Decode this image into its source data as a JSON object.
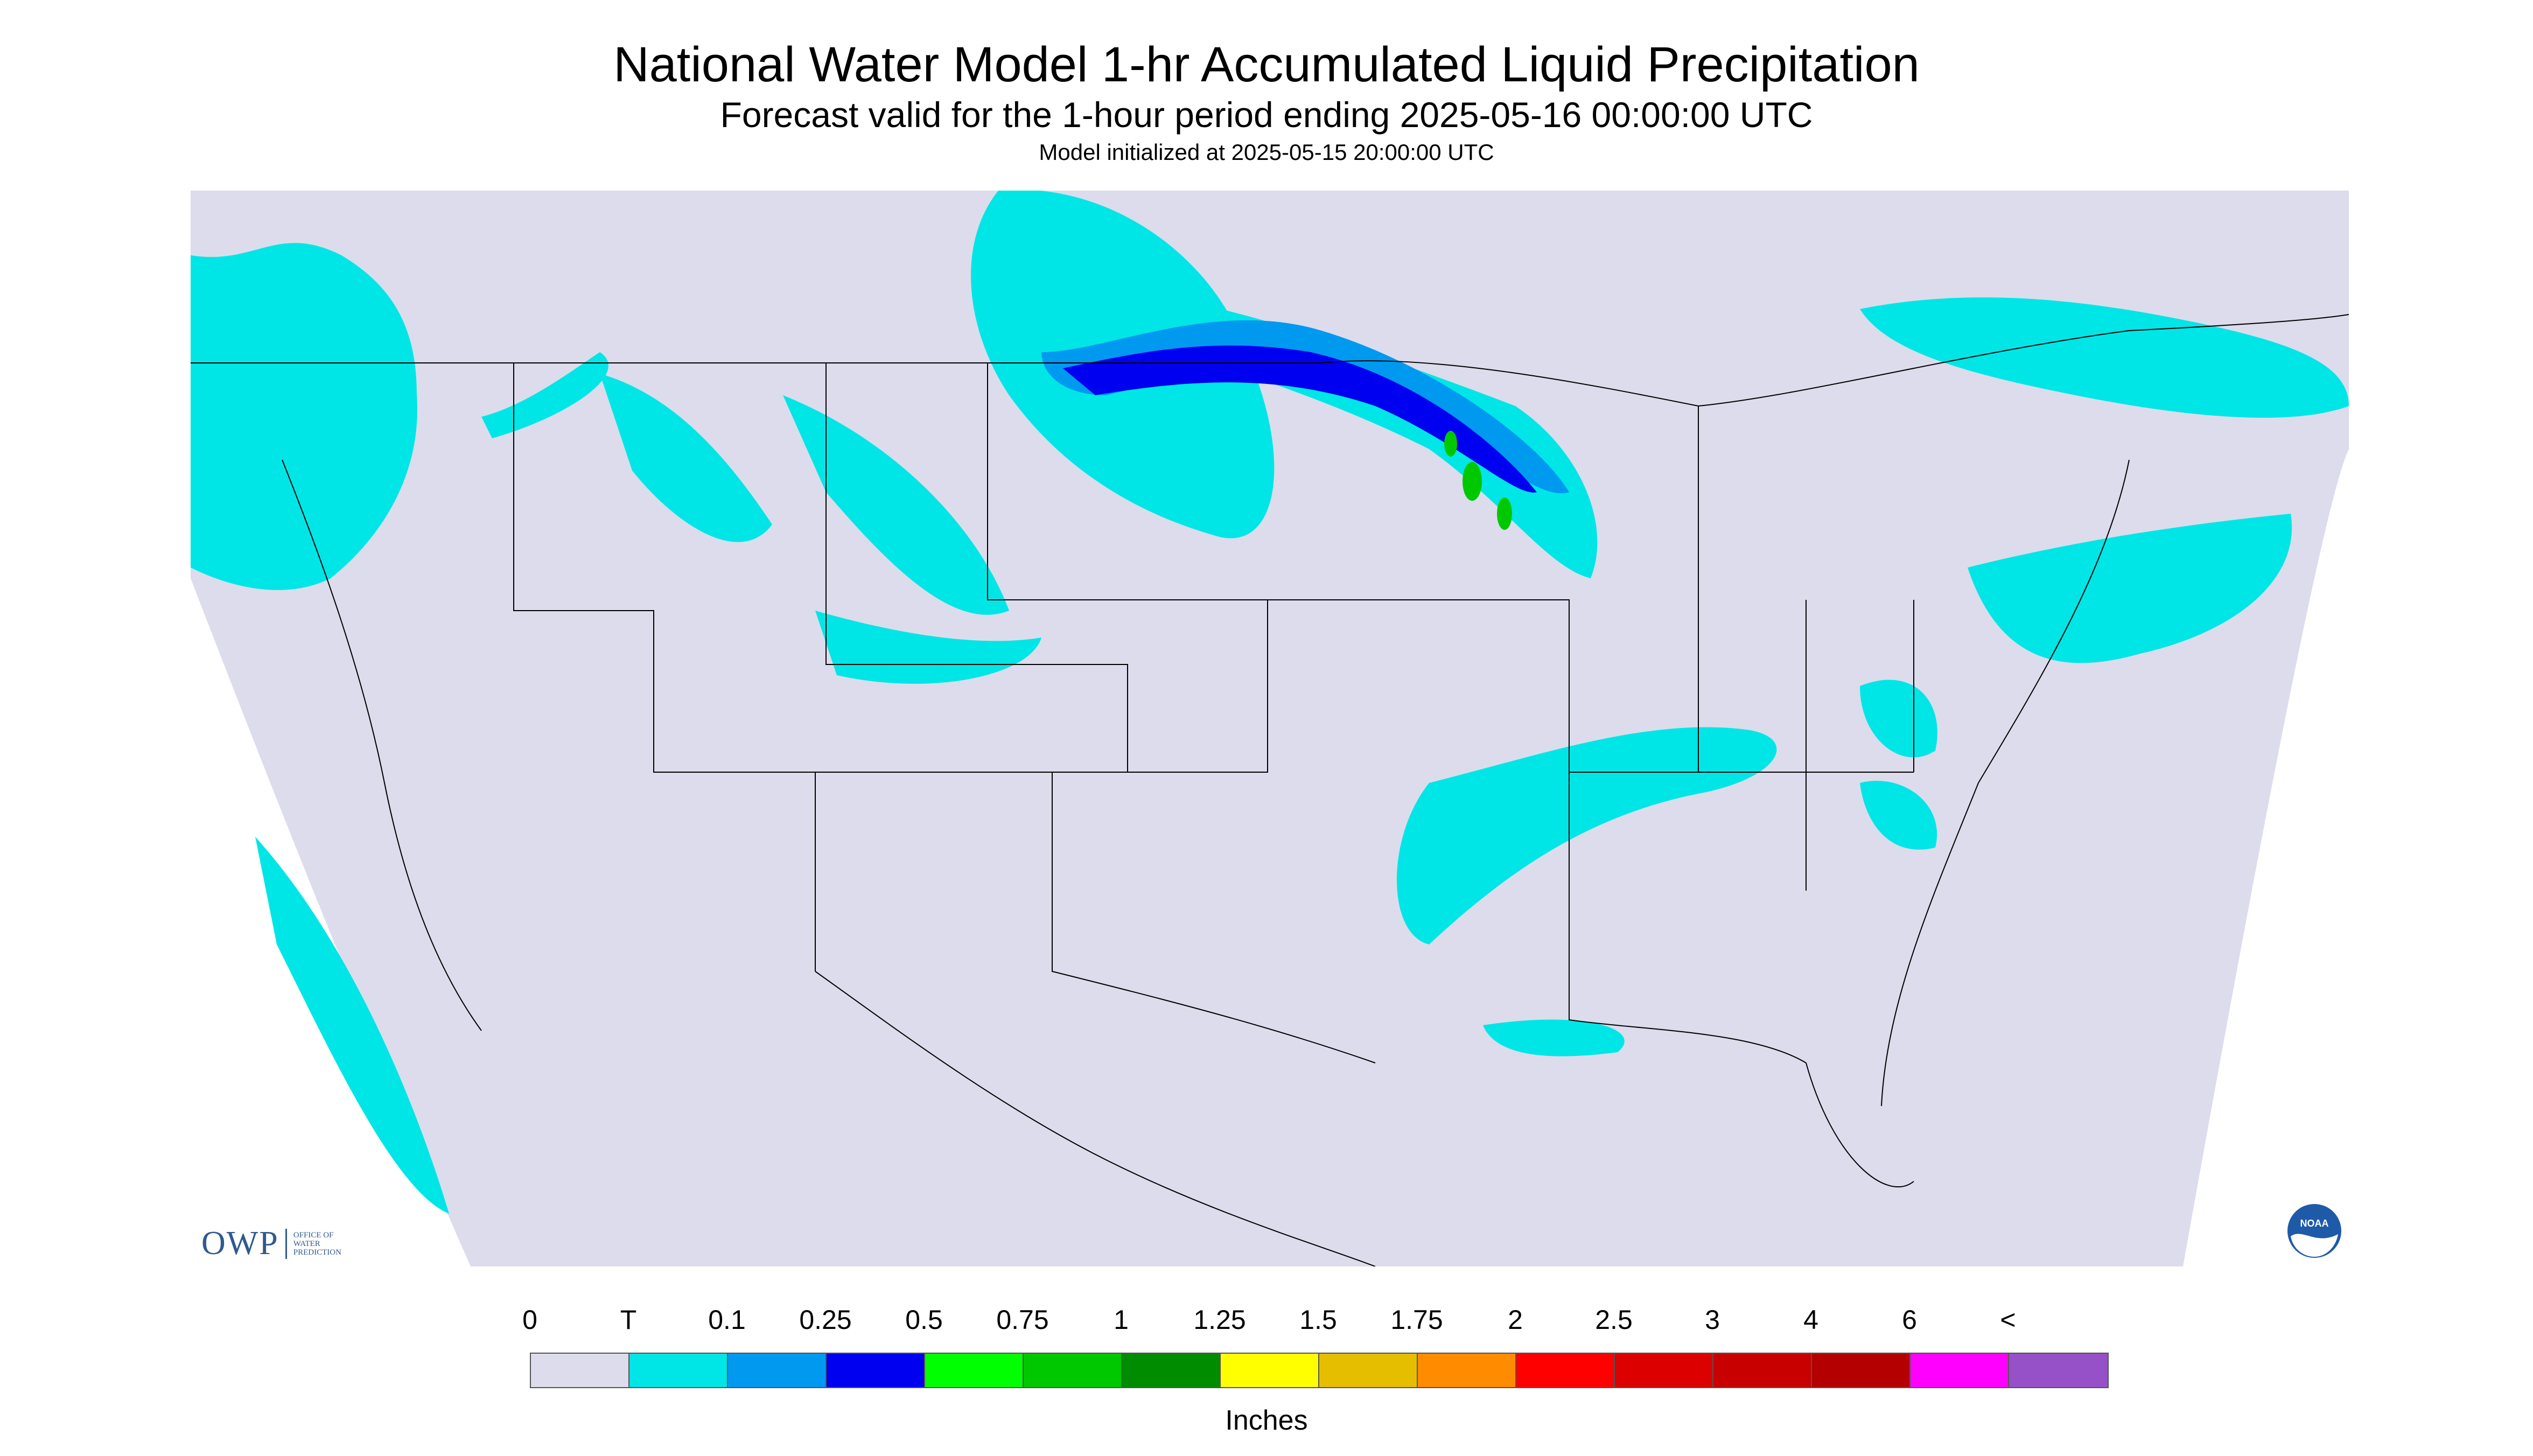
{
  "header": {
    "title": "National Water Model 1-hr Accumulated Liquid Precipitation",
    "subtitle": "Forecast valid for the 1-hour period ending 2025-05-16 00:00:00 UTC",
    "init_line": "Model initialized at 2025-05-15 20:00:00 UTC"
  },
  "map": {
    "background_color": "#dcdcec",
    "outside_domain_color": "#ffffff",
    "boundary_color": "#000000"
  },
  "logos": {
    "owp": {
      "letters": "OWP",
      "lines": [
        "OFFICE OF",
        "WATER",
        "PREDICTION"
      ]
    },
    "noaa": {
      "text": "NOAA"
    }
  },
  "legend": {
    "labels": [
      "0",
      "T",
      "0.1",
      "0.25",
      "0.5",
      "0.75",
      "1",
      "1.25",
      "1.5",
      "1.75",
      "2",
      "2.5",
      "3",
      "4",
      "6",
      "<"
    ],
    "colors": [
      "#dcdcec",
      "#00e6e6",
      "#0099f0",
      "#0000f0",
      "#00ff00",
      "#00c800",
      "#008c00",
      "#ffff00",
      "#e6be00",
      "#ff8c00",
      "#ff0000",
      "#dc0000",
      "#c80000",
      "#b40000",
      "#ff00ff",
      "#9650c8"
    ],
    "units": "Inches"
  }
}
